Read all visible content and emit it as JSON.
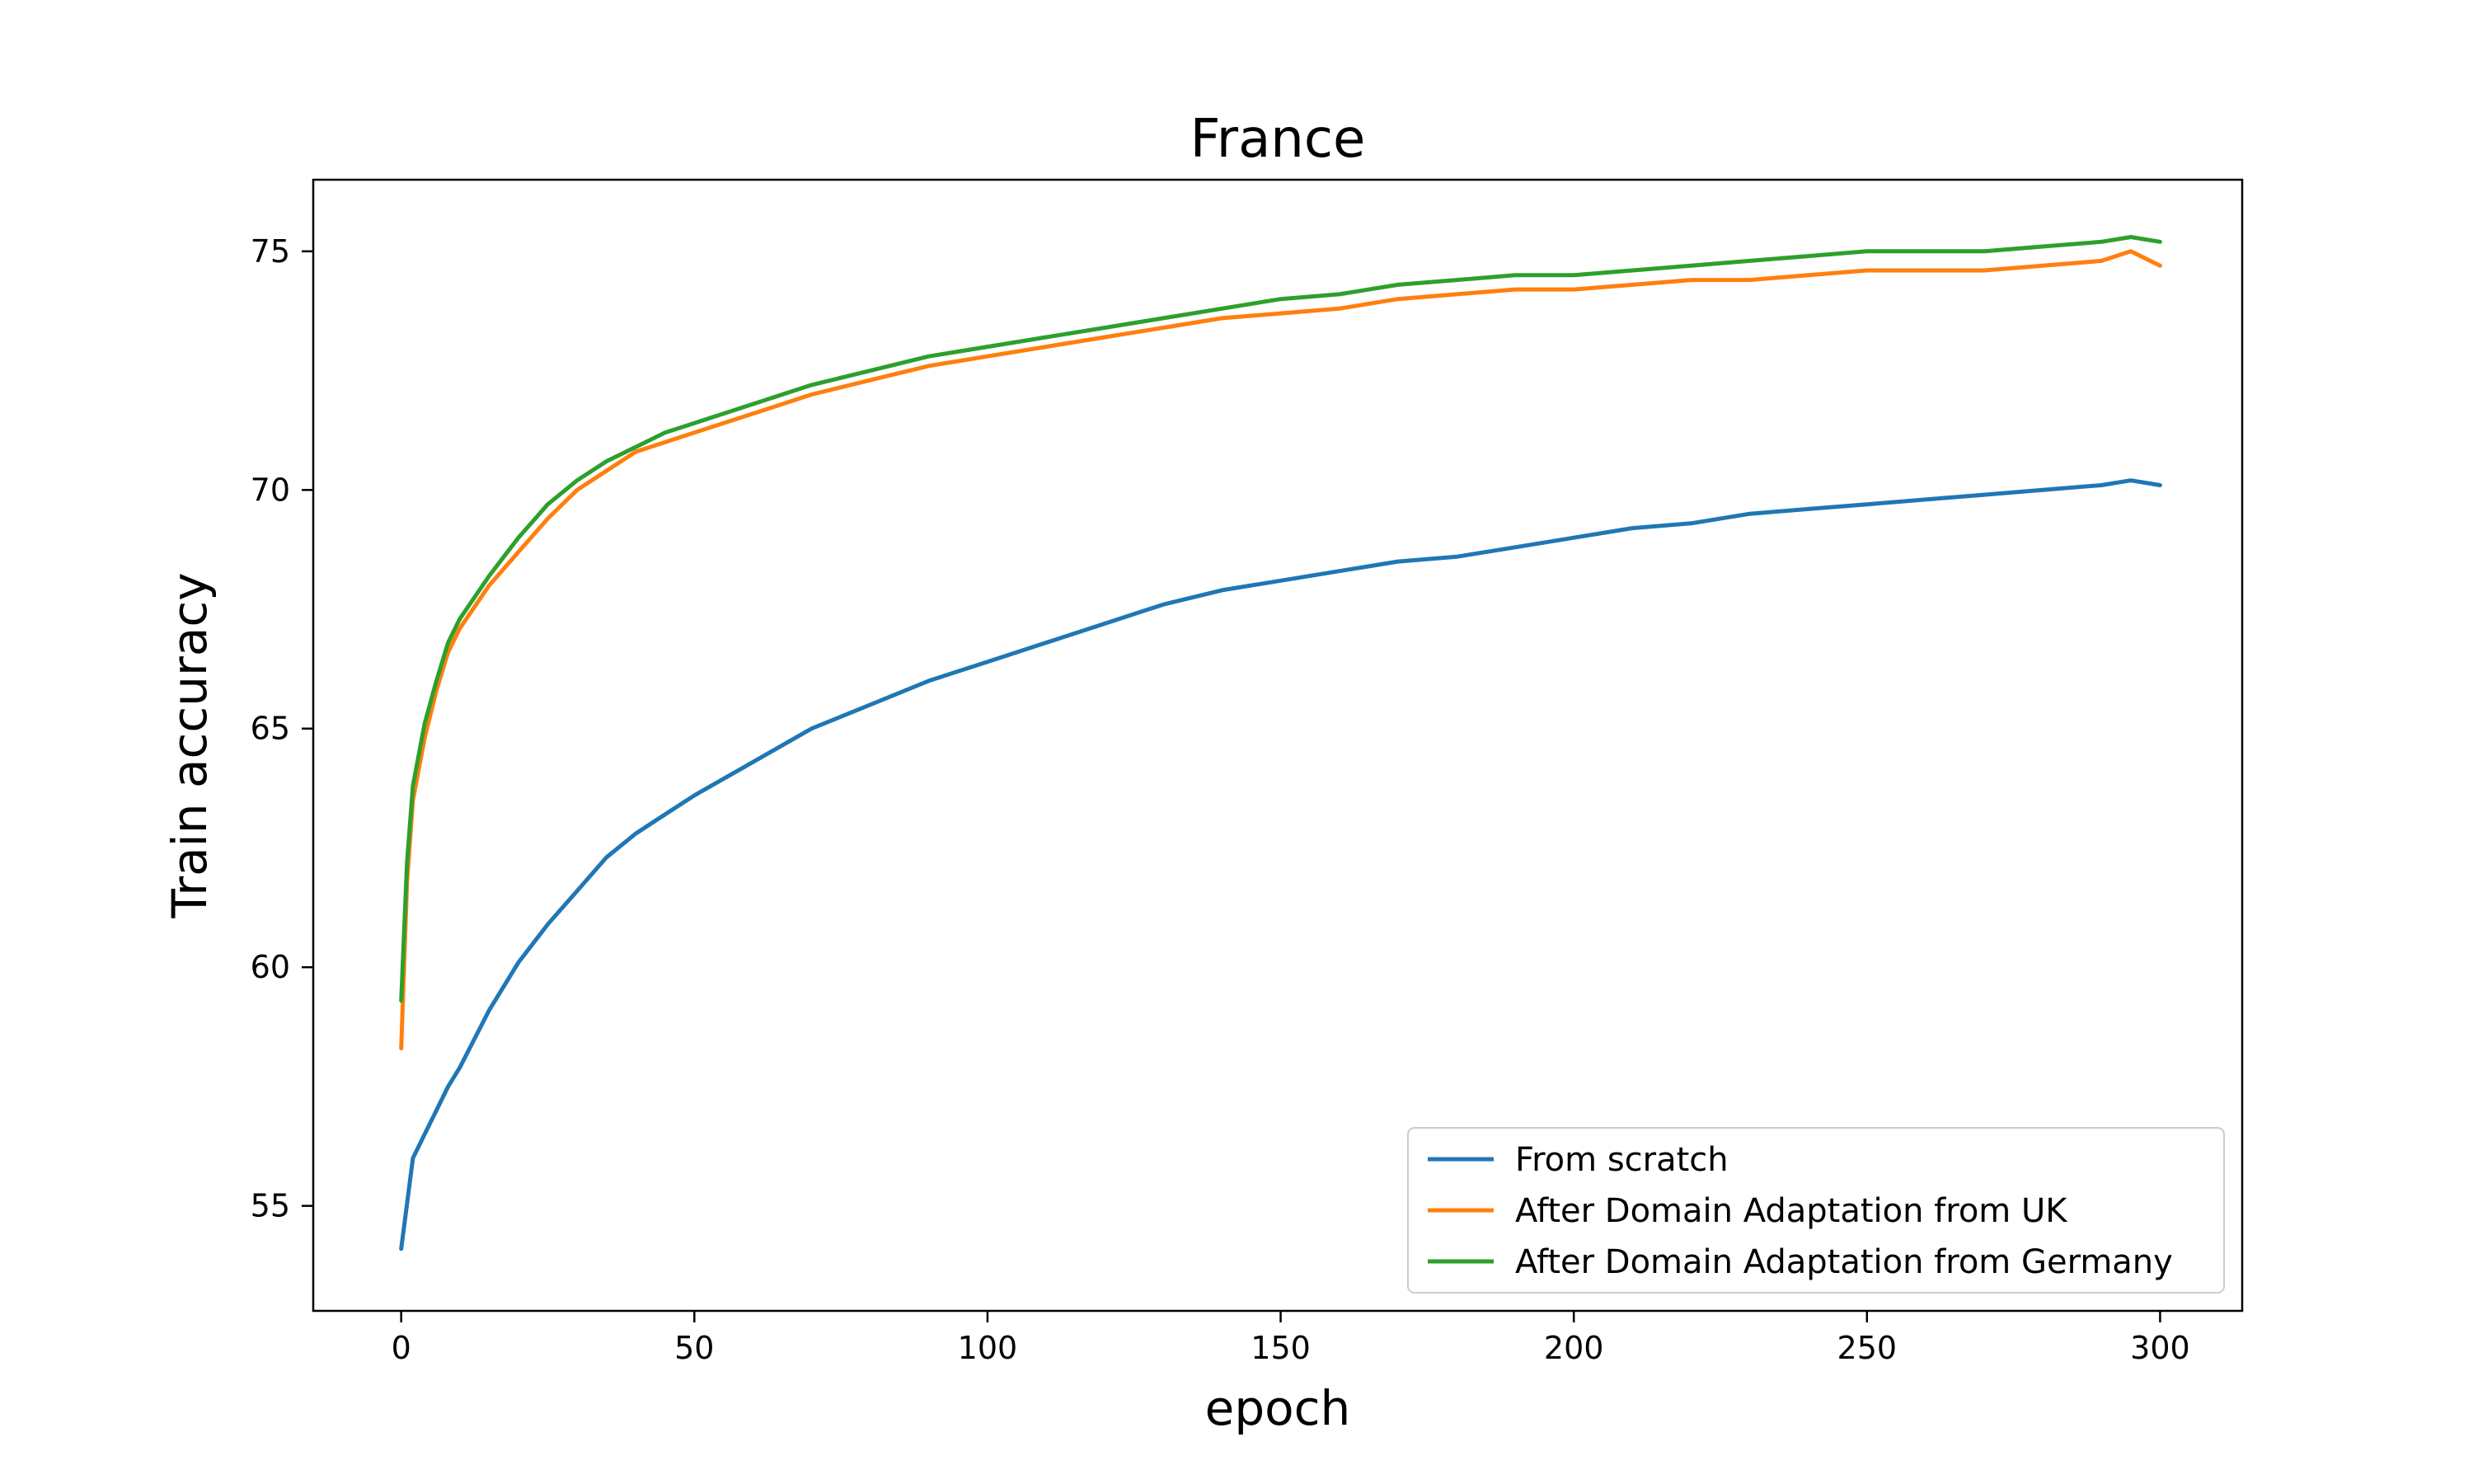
{
  "chart_data": {
    "type": "line",
    "title": "France",
    "xlabel": "epoch",
    "ylabel": "Train accuracy",
    "xlim": [
      -15,
      314
    ],
    "ylim": [
      52.8,
      76.5
    ],
    "xticks": [
      0,
      50,
      100,
      150,
      200,
      250,
      300
    ],
    "yticks": [
      55,
      60,
      65,
      70,
      75
    ],
    "grid": false,
    "legend_position": "lower right",
    "series": [
      {
        "name": "From scratch",
        "color": "#1f77b4",
        "x": [
          0,
          2,
          4,
          6,
          8,
          10,
          15,
          20,
          25,
          30,
          35,
          40,
          45,
          50,
          60,
          70,
          80,
          90,
          100,
          110,
          120,
          130,
          140,
          150,
          160,
          170,
          180,
          190,
          200,
          210,
          220,
          230,
          240,
          250,
          260,
          270,
          280,
          290,
          295,
          300
        ],
        "values": [
          54.1,
          56.0,
          56.5,
          57.0,
          57.5,
          57.9,
          59.1,
          60.1,
          60.9,
          61.6,
          62.3,
          62.8,
          63.2,
          63.6,
          64.3,
          65.0,
          65.5,
          66.0,
          66.4,
          66.8,
          67.2,
          67.6,
          67.9,
          68.1,
          68.3,
          68.5,
          68.6,
          68.8,
          69.0,
          69.2,
          69.3,
          69.5,
          69.6,
          69.7,
          69.8,
          69.9,
          70.0,
          70.1,
          70.2,
          70.1
        ]
      },
      {
        "name": "After Domain Adaptation from UK",
        "color": "#ff7f0e",
        "x": [
          0,
          1,
          2,
          4,
          6,
          8,
          10,
          15,
          20,
          25,
          30,
          35,
          40,
          45,
          50,
          60,
          70,
          80,
          90,
          100,
          110,
          120,
          130,
          140,
          150,
          160,
          170,
          180,
          190,
          200,
          210,
          220,
          230,
          240,
          250,
          260,
          270,
          280,
          290,
          295,
          300
        ],
        "values": [
          58.3,
          61.8,
          63.5,
          64.8,
          65.8,
          66.6,
          67.1,
          68.0,
          68.7,
          69.4,
          70.0,
          70.4,
          70.8,
          71.0,
          71.2,
          71.6,
          72.0,
          72.3,
          72.6,
          72.8,
          73.0,
          73.2,
          73.4,
          73.6,
          73.7,
          73.8,
          74.0,
          74.1,
          74.2,
          74.2,
          74.3,
          74.4,
          74.4,
          74.5,
          74.6,
          74.6,
          74.6,
          74.7,
          74.8,
          75.0,
          74.7
        ]
      },
      {
        "name": "After Domain Adaptation from Germany",
        "color": "#2ca02c",
        "x": [
          0,
          1,
          2,
          4,
          6,
          8,
          10,
          15,
          20,
          25,
          30,
          35,
          40,
          45,
          50,
          60,
          70,
          80,
          90,
          100,
          110,
          120,
          130,
          140,
          150,
          160,
          170,
          180,
          190,
          200,
          210,
          220,
          230,
          240,
          250,
          260,
          270,
          280,
          290,
          295,
          300
        ],
        "values": [
          59.3,
          62.2,
          63.8,
          65.1,
          66.0,
          66.8,
          67.3,
          68.2,
          69.0,
          69.7,
          70.2,
          70.6,
          70.9,
          71.2,
          71.4,
          71.8,
          72.2,
          72.5,
          72.8,
          73.0,
          73.2,
          73.4,
          73.6,
          73.8,
          74.0,
          74.1,
          74.3,
          74.4,
          74.5,
          74.5,
          74.6,
          74.7,
          74.8,
          74.9,
          75.0,
          75.0,
          75.0,
          75.1,
          75.2,
          75.3,
          75.2
        ]
      }
    ]
  }
}
